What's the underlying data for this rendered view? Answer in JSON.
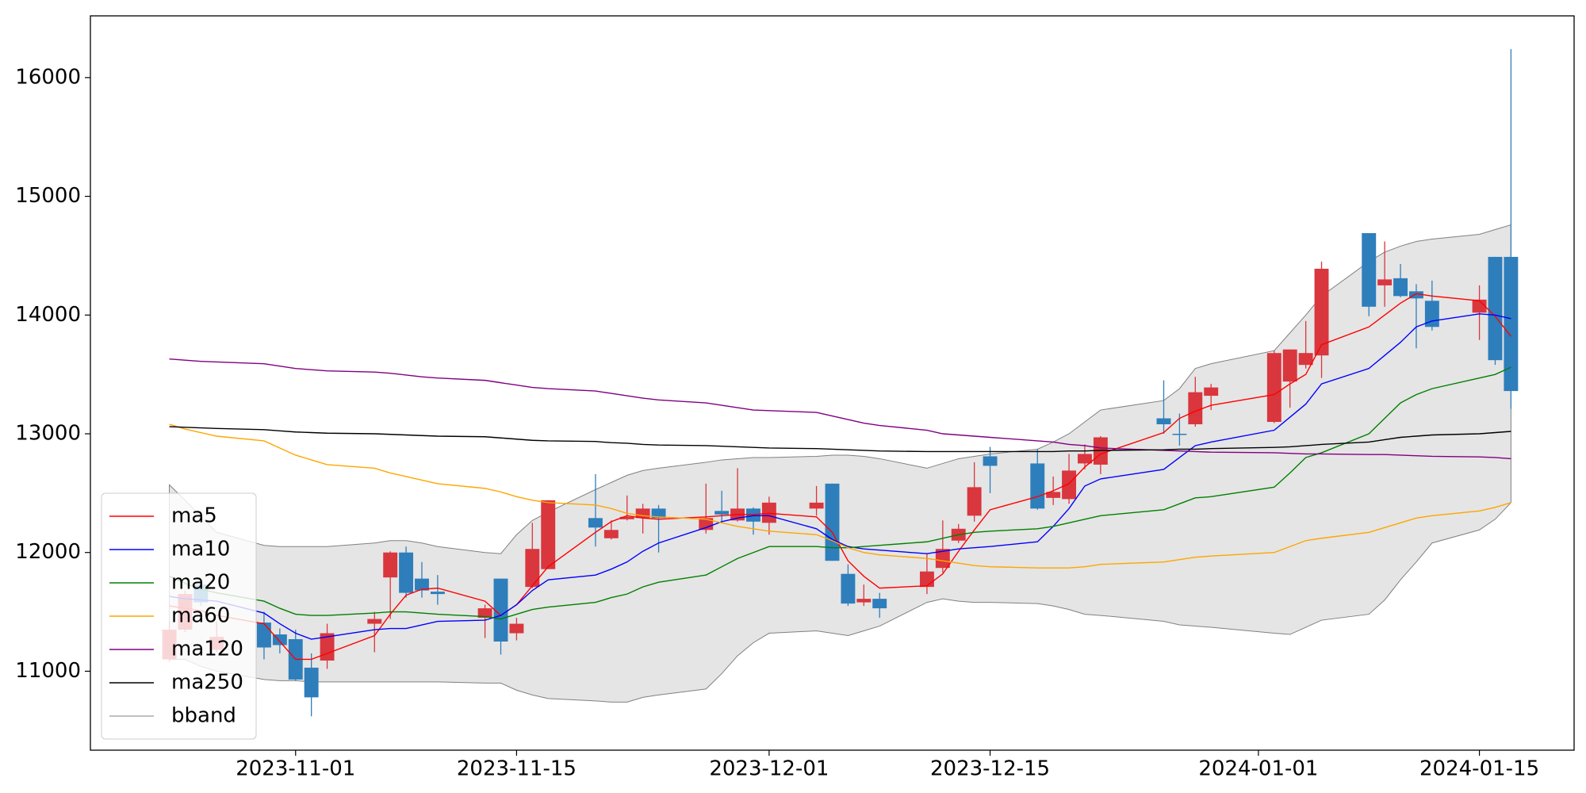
{
  "chart_data": {
    "type": "candlestick",
    "x": [
      "2023-10-24",
      "2023-10-25",
      "2023-10-26",
      "2023-10-27",
      "2023-10-30",
      "2023-10-31",
      "2023-11-01",
      "2023-11-02",
      "2023-11-03",
      "2023-11-06",
      "2023-11-07",
      "2023-11-08",
      "2023-11-09",
      "2023-11-10",
      "2023-11-13",
      "2023-11-14",
      "2023-11-15",
      "2023-11-16",
      "2023-11-17",
      "2023-11-20",
      "2023-11-21",
      "2023-11-22",
      "2023-11-23",
      "2023-11-24",
      "2023-11-27",
      "2023-11-28",
      "2023-11-29",
      "2023-11-30",
      "2023-12-01",
      "2023-12-04",
      "2023-12-05",
      "2023-12-06",
      "2023-12-07",
      "2023-12-08",
      "2023-12-11",
      "2023-12-12",
      "2023-12-13",
      "2023-12-14",
      "2023-12-15",
      "2023-12-18",
      "2023-12-19",
      "2023-12-20",
      "2023-12-21",
      "2023-12-22",
      "2023-12-26",
      "2023-12-27",
      "2023-12-28",
      "2023-12-29",
      "2024-01-02",
      "2024-01-03",
      "2024-01-04",
      "2024-01-05",
      "2024-01-08",
      "2024-01-09",
      "2024-01-10",
      "2024-01-11",
      "2024-01-12",
      "2024-01-15",
      "2024-01-16",
      "2024-01-17"
    ],
    "open": [
      11100,
      11350,
      11730,
      11180,
      11410,
      11310,
      11270,
      11030,
      11090,
      11400,
      11790,
      12000,
      11780,
      11670,
      11450,
      11780,
      11320,
      11710,
      11860,
      12290,
      12120,
      12280,
      12290,
      12370,
      12190,
      12350,
      12270,
      12370,
      12250,
      12370,
      12580,
      11820,
      11580,
      11610,
      11710,
      11870,
      12100,
      12310,
      12810,
      12750,
      12460,
      12450,
      12750,
      12740,
      13130,
      13000,
      13080,
      13320,
      13100,
      13440,
      13580,
      13660,
      14690,
      14250,
      14310,
      14200,
      14120,
      14020,
      14490,
      14490
    ],
    "high": [
      11420,
      11680,
      11780,
      11420,
      11500,
      11360,
      11350,
      11150,
      11400,
      11500,
      12010,
      12050,
      11920,
      11810,
      11560,
      11780,
      11450,
      12250,
      12440,
      12660,
      12270,
      12480,
      12410,
      12400,
      12580,
      12520,
      12710,
      12380,
      12470,
      12560,
      12580,
      11900,
      11730,
      11660,
      11990,
      12270,
      12240,
      12760,
      12890,
      12870,
      12640,
      12830,
      12910,
      12980,
      13450,
      13170,
      13480,
      13420,
      13700,
      13710,
      13950,
      14450,
      14690,
      14620,
      14430,
      14260,
      14290,
      14250,
      14490,
      16240
    ],
    "low": [
      11080,
      11330,
      11550,
      11160,
      11100,
      11150,
      10920,
      10620,
      11020,
      11160,
      11440,
      11620,
      11620,
      11560,
      11280,
      11140,
      11260,
      11700,
      11860,
      12050,
      12110,
      12270,
      12160,
      12000,
      12160,
      12250,
      12260,
      12150,
      12150,
      12310,
      11930,
      11550,
      11550,
      11450,
      11650,
      11830,
      12080,
      12260,
      12500,
      12360,
      12400,
      12410,
      12700,
      12660,
      13000,
      12900,
      13060,
      13200,
      13090,
      13220,
      13550,
      13470,
      13990,
      14070,
      14150,
      13720,
      13870,
      13790,
      13580,
      13210
    ],
    "close": [
      11350,
      11650,
      11580,
      11290,
      11200,
      11220,
      10930,
      10780,
      11320,
      11440,
      12000,
      11660,
      11680,
      11650,
      11530,
      11250,
      11400,
      12030,
      12440,
      12210,
      12190,
      12300,
      12370,
      12290,
      12290,
      12320,
      12370,
      12260,
      12420,
      12420,
      11930,
      11570,
      11610,
      11530,
      11840,
      12030,
      12200,
      12550,
      12730,
      12370,
      12510,
      12690,
      12830,
      12970,
      13080,
      12990,
      13350,
      13390,
      13680,
      13710,
      13680,
      14390,
      14070,
      14300,
      14160,
      14140,
      13900,
      14130,
      13620,
      13360
    ],
    "up_color": "#d9363e",
    "down_color": "#2e7ebc",
    "series": [
      {
        "name": "ma5",
        "color": "#ff0000",
        "values": [
          11550,
          11530,
          11510,
          11470,
          11400,
          11250,
          11100,
          11100,
          11150,
          11300,
          11480,
          11640,
          11690,
          11700,
          11590,
          11470,
          11560,
          11720,
          11880,
          12170,
          12260,
          12310,
          12290,
          12280,
          12300,
          12310,
          12320,
          12320,
          12330,
          12300,
          12170,
          11930,
          11800,
          11700,
          11720,
          11820,
          12010,
          12190,
          12360,
          12470,
          12520,
          12580,
          12720,
          12830,
          13010,
          13130,
          13190,
          13240,
          13330,
          13420,
          13500,
          13750,
          13900,
          14000,
          14100,
          14180,
          14160,
          14120,
          13990,
          13820
        ]
      },
      {
        "name": "ma10",
        "color": "#0000ff",
        "values": [
          11630,
          11610,
          11600,
          11590,
          11490,
          11400,
          11320,
          11270,
          11290,
          11350,
          11360,
          11360,
          11390,
          11420,
          11430,
          11470,
          11560,
          11680,
          11770,
          11810,
          11860,
          11920,
          12010,
          12080,
          12210,
          12260,
          12290,
          12310,
          12310,
          12200,
          12110,
          12050,
          12030,
          12020,
          11990,
          12010,
          12030,
          12040,
          12050,
          12090,
          12220,
          12370,
          12560,
          12620,
          12700,
          12800,
          12900,
          12930,
          13030,
          13140,
          13250,
          13420,
          13550,
          13660,
          13770,
          13900,
          13950,
          14010,
          14000,
          13970
        ]
      },
      {
        "name": "ma20",
        "color": "#008000",
        "values": [
          11800,
          11740,
          11690,
          11660,
          11590,
          11530,
          11480,
          11470,
          11470,
          11490,
          11500,
          11500,
          11490,
          11480,
          11460,
          11440,
          11480,
          11520,
          11540,
          11580,
          11620,
          11650,
          11710,
          11750,
          11810,
          11880,
          11950,
          12000,
          12050,
          12050,
          12040,
          12040,
          12050,
          12060,
          12090,
          12120,
          12150,
          12170,
          12180,
          12200,
          12220,
          12250,
          12280,
          12310,
          12360,
          12410,
          12460,
          12470,
          12550,
          12670,
          12800,
          12840,
          13000,
          13130,
          13260,
          13330,
          13380,
          13470,
          13500,
          13560
        ]
      },
      {
        "name": "ma60",
        "color": "#ffa500",
        "values": [
          13080,
          13040,
          13010,
          12980,
          12940,
          12880,
          12820,
          12780,
          12740,
          12710,
          12670,
          12640,
          12610,
          12580,
          12540,
          12510,
          12470,
          12440,
          12420,
          12400,
          12370,
          12330,
          12310,
          12300,
          12280,
          12250,
          12220,
          12200,
          12180,
          12150,
          12100,
          12040,
          12000,
          11980,
          11950,
          11930,
          11910,
          11890,
          11880,
          11870,
          11870,
          11870,
          11880,
          11900,
          11920,
          11940,
          11960,
          11970,
          12000,
          12050,
          12100,
          12120,
          12170,
          12210,
          12250,
          12290,
          12310,
          12350,
          12380,
          12420
        ]
      },
      {
        "name": "ma120",
        "color": "#800080",
        "values": [
          13630,
          13620,
          13610,
          13605,
          13590,
          13570,
          13550,
          13540,
          13530,
          13520,
          13510,
          13495,
          13480,
          13470,
          13450,
          13430,
          13410,
          13390,
          13380,
          13360,
          13340,
          13320,
          13300,
          13285,
          13260,
          13240,
          13220,
          13200,
          13195,
          13180,
          13150,
          13120,
          13090,
          13070,
          13030,
          13000,
          12990,
          12980,
          12970,
          12940,
          12930,
          12910,
          12900,
          12880,
          12860,
          12855,
          12850,
          12845,
          12840,
          12835,
          12830,
          12830,
          12825,
          12825,
          12820,
          12815,
          12810,
          12805,
          12800,
          12790
        ]
      },
      {
        "name": "ma250",
        "color": "#000000",
        "values": [
          13060,
          13055,
          13050,
          13045,
          13035,
          13025,
          13015,
          13010,
          13005,
          13000,
          12995,
          12990,
          12985,
          12980,
          12975,
          12965,
          12955,
          12945,
          12940,
          12935,
          12925,
          12920,
          12910,
          12905,
          12900,
          12895,
          12890,
          12885,
          12880,
          12875,
          12870,
          12865,
          12860,
          12855,
          12850,
          12850,
          12850,
          12850,
          12850,
          12850,
          12850,
          12855,
          12855,
          12860,
          12865,
          12870,
          12870,
          12875,
          12885,
          12890,
          12900,
          12910,
          12930,
          12950,
          12970,
          12980,
          12990,
          13000,
          13010,
          13020
        ]
      }
    ],
    "band": {
      "name": "bband",
      "color": "#808080",
      "fill": "#e5e5e5",
      "upper": [
        12570,
        12440,
        12300,
        12170,
        12060,
        12050,
        12050,
        12050,
        12050,
        12080,
        12100,
        12100,
        12080,
        12050,
        12000,
        11990,
        12150,
        12270,
        12340,
        12530,
        12590,
        12650,
        12690,
        12710,
        12760,
        12780,
        12790,
        12800,
        12800,
        12810,
        12820,
        12820,
        12810,
        12790,
        12710,
        12750,
        12790,
        12810,
        12830,
        12870,
        12930,
        13000,
        13100,
        13200,
        13280,
        13380,
        13550,
        13590,
        13700,
        13850,
        14000,
        14160,
        14450,
        14530,
        14580,
        14620,
        14640,
        14680,
        14720,
        14760
      ],
      "lower": [
        11100,
        11100,
        11040,
        11000,
        10930,
        10920,
        10920,
        10910,
        10910,
        10910,
        10910,
        10910,
        10910,
        10910,
        10900,
        10900,
        10840,
        10800,
        10770,
        10750,
        10740,
        10740,
        10780,
        10800,
        10850,
        10980,
        11130,
        11240,
        11320,
        11340,
        11320,
        11300,
        11340,
        11380,
        11580,
        11610,
        11590,
        11580,
        11580,
        11570,
        11550,
        11520,
        11480,
        11470,
        11420,
        11390,
        11380,
        11370,
        11320,
        11310,
        11370,
        11430,
        11480,
        11600,
        11770,
        11920,
        12080,
        12190,
        12280,
        12420
      ]
    },
    "xlim": [
      "2023-10-19",
      "2024-01-21"
    ],
    "xticks": [
      "2023-11-01",
      "2023-11-15",
      "2023-12-01",
      "2023-12-15",
      "2024-01-01",
      "2024-01-15"
    ],
    "ylim": [
      10335,
      16520
    ],
    "yticks": [
      11000,
      12000,
      13000,
      14000,
      15000,
      16000
    ],
    "legend": "lower left"
  }
}
